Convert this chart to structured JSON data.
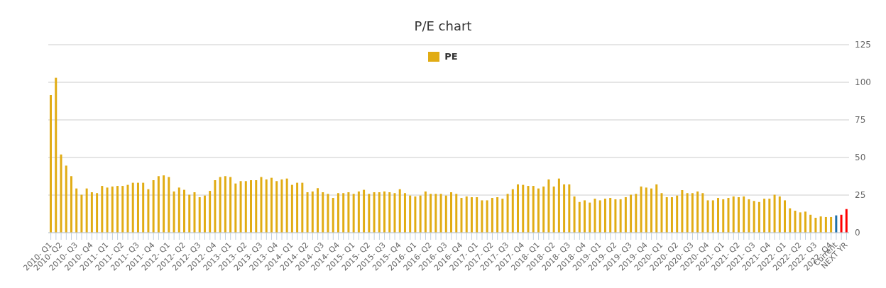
{
  "chart_data": {
    "type": "bar",
    "title": "P/E chart",
    "categories": [
      "2010- Q1",
      null,
      "2010- Q2",
      null,
      null,
      "2010- Q3",
      null,
      null,
      "2010- Q4",
      null,
      null,
      "2011- Q1",
      null,
      null,
      "2011- Q2",
      null,
      null,
      "2011- Q3",
      null,
      null,
      "2011- Q4",
      null,
      null,
      "2012- Q1",
      null,
      null,
      "2012- Q2",
      null,
      null,
      "2012- Q3",
      null,
      null,
      "2012- Q4",
      null,
      null,
      "2013- Q1",
      null,
      null,
      "2013- Q2",
      null,
      null,
      "2013- Q3",
      null,
      null,
      "2013- Q4",
      null,
      null,
      "2014- Q1",
      null,
      null,
      "2014- Q2",
      null,
      null,
      "2014- Q3",
      null,
      null,
      "2014- Q4",
      null,
      null,
      "2015- Q1",
      null,
      null,
      "2015- Q2",
      null,
      null,
      "2015- Q3",
      null,
      null,
      "2015- Q4",
      null,
      null,
      "2016- Q1",
      null,
      null,
      "2016- Q2",
      null,
      null,
      "2016- Q3",
      null,
      null,
      "2016- Q4",
      null,
      null,
      "2017- Q1",
      null,
      null,
      "2017- Q2",
      null,
      null,
      "2017- Q3",
      null,
      null,
      "2017- Q4",
      null,
      null,
      "2018- Q1",
      null,
      null,
      "2018- Q2",
      null,
      null,
      "2018- Q3",
      null,
      null,
      "2018- Q4",
      null,
      null,
      "2019- Q1",
      null,
      null,
      "2019- Q2",
      null,
      null,
      "2019- Q3",
      null,
      null,
      "2019- Q4",
      null,
      null,
      "2020- Q1",
      null,
      null,
      "2020- Q2",
      null,
      null,
      "2020- Q3",
      null,
      null,
      "2020- Q4",
      null,
      null,
      "2021- Q1",
      null,
      null,
      "2021- Q2",
      null,
      null,
      "2021- Q3",
      null,
      null,
      "2021- Q4",
      null,
      null,
      "2022- Q1",
      null,
      null,
      "2022- Q2",
      null,
      null,
      "2022- Q3",
      null,
      null,
      "2022- Q4",
      "Current",
      null,
      "NEXT YR"
    ],
    "series": [
      {
        "name": "PE",
        "color": "#e1ac14",
        "values": [
          91.5,
          103,
          52,
          44.6,
          37.6,
          29.4,
          25.2,
          29.4,
          26.9,
          26.3,
          31.1,
          30.0,
          30.7,
          31.1,
          31.1,
          31.8,
          33.2,
          33.2,
          33.2,
          28.9,
          34.9,
          37.6,
          38.1,
          37.0,
          27.4,
          30.0,
          28.5,
          25.2,
          26.9,
          23.6,
          24.7,
          27.8,
          34.9,
          37.0,
          37.6,
          37.0,
          32.7,
          34.3,
          34.3,
          34.9,
          34.9,
          37.0,
          35.4,
          36.5,
          34.3,
          35.4,
          36.0,
          31.8,
          33.2,
          33.2,
          26.9,
          27.4,
          29.6,
          26.9,
          25.8,
          23.1,
          26.3,
          26.3,
          26.9,
          25.8,
          27.4,
          28.5,
          25.8,
          26.9,
          26.9,
          27.4,
          26.9,
          26.3,
          28.9,
          26.3,
          24.7,
          24.1,
          24.7,
          27.4,
          25.8,
          25.8,
          25.8,
          24.7,
          26.9,
          25.8,
          23.1,
          24.1,
          23.6,
          23.6,
          21.5,
          21.5,
          23.1,
          23.6,
          22.6,
          25.8,
          28.9,
          32.1,
          31.8,
          31.1,
          31.1,
          29.4,
          30.7,
          35.4,
          30.7,
          36.0,
          32.1,
          32.1,
          24.1,
          20.4,
          21.5,
          20.0,
          22.6,
          21.5,
          22.6,
          23.1,
          22.2,
          22.2,
          23.6,
          25.2,
          25.8,
          30.7,
          30.0,
          29.4,
          32.1,
          26.3,
          23.6,
          23.6,
          24.7,
          28.3,
          26.3,
          26.3,
          27.4,
          26.3,
          21.5,
          21.5,
          23.1,
          22.2,
          23.1,
          24.1,
          23.6,
          24.1,
          22.2,
          21.1,
          20.4,
          22.6,
          22.6,
          25.2,
          24.1,
          21.5,
          16.2,
          14.6,
          13.5,
          14.0,
          11.9,
          9.9,
          10.8,
          10.4,
          10.4,
          11.5,
          11.9,
          15.7
        ],
        "colors": [
          "#e1ac14",
          "#e1ac14",
          "#e1ac14",
          "#e1ac14",
          "#e1ac14",
          "#e1ac14",
          "#e1ac14",
          "#e1ac14",
          "#e1ac14",
          "#e1ac14",
          "#e1ac14",
          "#e1ac14",
          "#e1ac14",
          "#e1ac14",
          "#e1ac14",
          "#e1ac14",
          "#e1ac14",
          "#e1ac14",
          "#e1ac14",
          "#e1ac14",
          "#e1ac14",
          "#e1ac14",
          "#e1ac14",
          "#e1ac14",
          "#e1ac14",
          "#e1ac14",
          "#e1ac14",
          "#e1ac14",
          "#e1ac14",
          "#e1ac14",
          "#e1ac14",
          "#e1ac14",
          "#e1ac14",
          "#e1ac14",
          "#e1ac14",
          "#e1ac14",
          "#e1ac14",
          "#e1ac14",
          "#e1ac14",
          "#e1ac14",
          "#e1ac14",
          "#e1ac14",
          "#e1ac14",
          "#e1ac14",
          "#e1ac14",
          "#e1ac14",
          "#e1ac14",
          "#e1ac14",
          "#e1ac14",
          "#e1ac14",
          "#e1ac14",
          "#e1ac14",
          "#e1ac14",
          "#e1ac14",
          "#e1ac14",
          "#e1ac14",
          "#e1ac14",
          "#e1ac14",
          "#e1ac14",
          "#e1ac14",
          "#e1ac14",
          "#e1ac14",
          "#e1ac14",
          "#e1ac14",
          "#e1ac14",
          "#e1ac14",
          "#e1ac14",
          "#e1ac14",
          "#e1ac14",
          "#e1ac14",
          "#e1ac14",
          "#e1ac14",
          "#e1ac14",
          "#e1ac14",
          "#e1ac14",
          "#e1ac14",
          "#e1ac14",
          "#e1ac14",
          "#e1ac14",
          "#e1ac14",
          "#e1ac14",
          "#e1ac14",
          "#e1ac14",
          "#e1ac14",
          "#e1ac14",
          "#e1ac14",
          "#e1ac14",
          "#e1ac14",
          "#e1ac14",
          "#e1ac14",
          "#e1ac14",
          "#e1ac14",
          "#e1ac14",
          "#e1ac14",
          "#e1ac14",
          "#e1ac14",
          "#e1ac14",
          "#e1ac14",
          "#e1ac14",
          "#e1ac14",
          "#e1ac14",
          "#e1ac14",
          "#e1ac14",
          "#e1ac14",
          "#e1ac14",
          "#e1ac14",
          "#e1ac14",
          "#e1ac14",
          "#e1ac14",
          "#e1ac14",
          "#e1ac14",
          "#e1ac14",
          "#e1ac14",
          "#e1ac14",
          "#e1ac14",
          "#e1ac14",
          "#e1ac14",
          "#e1ac14",
          "#e1ac14",
          "#e1ac14",
          "#e1ac14",
          "#e1ac14",
          "#e1ac14",
          "#e1ac14",
          "#e1ac14",
          "#e1ac14",
          "#e1ac14",
          "#e1ac14",
          "#e1ac14",
          "#e1ac14",
          "#e1ac14",
          "#e1ac14",
          "#e1ac14",
          "#e1ac14",
          "#e1ac14",
          "#e1ac14",
          "#e1ac14",
          "#e1ac14",
          "#e1ac14",
          "#e1ac14",
          "#e1ac14",
          "#e1ac14",
          "#e1ac14",
          "#e1ac14",
          "#e1ac14",
          "#e1ac14",
          "#e1ac14",
          "#e1ac14",
          "#e1ac14",
          "#e1ac14",
          "#e1ac14",
          "#e1ac14",
          "#e1ac14",
          "#1f6fa8",
          "#ff0000",
          "#ff0000"
        ]
      }
    ],
    "ylim": [
      0,
      125
    ],
    "yticks": [
      0,
      25,
      50,
      75,
      100,
      125
    ],
    "grid": "y",
    "legend": "top"
  }
}
